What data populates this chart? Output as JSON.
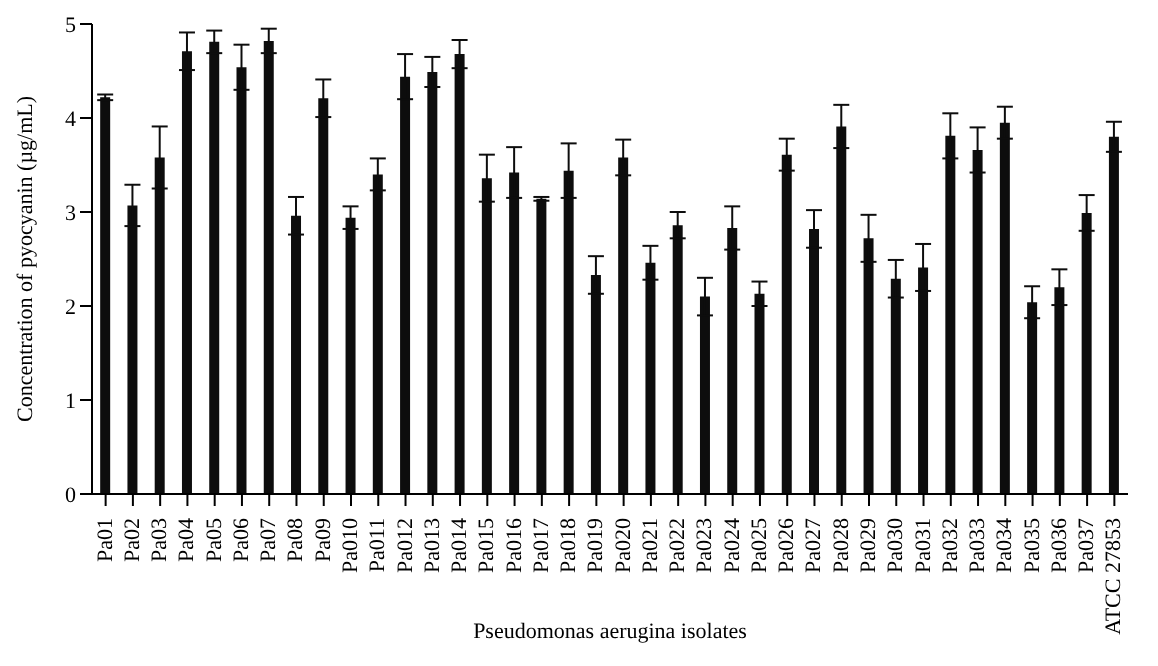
{
  "chart_data": {
    "type": "bar",
    "xlabel": "Pseudomonas aerugina isolates",
    "ylabel": "Concentration of pyocyanin (µg/mL)",
    "categories": [
      "Pa01",
      "Pa02",
      "Pa03",
      "Pa04",
      "Pa05",
      "Pa06",
      "Pa07",
      "Pa08",
      "Pa09",
      "Pa010",
      "Pa011",
      "Pa012",
      "Pa013",
      "Pa014",
      "Pa015",
      "Pa016",
      "Pa017",
      "Pa018",
      "Pa019",
      "Pa020",
      "Pa021",
      "Pa022",
      "Pa023",
      "Pa024",
      "Pa025",
      "Pa026",
      "Pa027",
      "Pa028",
      "Pa029",
      "Pa030",
      "Pa031",
      "Pa032",
      "Pa033",
      "Pa034",
      "Pa035",
      "Pa036",
      "Pa037",
      "ATCC 27853"
    ],
    "values": [
      4.22,
      3.07,
      3.58,
      4.71,
      4.81,
      4.54,
      4.82,
      2.96,
      4.21,
      2.94,
      3.4,
      4.44,
      4.49,
      4.68,
      3.36,
      3.42,
      3.14,
      3.44,
      2.33,
      3.58,
      2.46,
      2.86,
      2.1,
      2.83,
      2.13,
      3.61,
      2.82,
      3.91,
      2.72,
      2.29,
      2.41,
      3.81,
      3.66,
      3.95,
      2.04,
      2.2,
      2.99,
      3.8
    ],
    "errors": [
      0.03,
      0.22,
      0.33,
      0.2,
      0.12,
      0.24,
      0.13,
      0.2,
      0.2,
      0.12,
      0.17,
      0.24,
      0.16,
      0.15,
      0.25,
      0.27,
      0.02,
      0.29,
      0.2,
      0.19,
      0.18,
      0.14,
      0.2,
      0.23,
      0.13,
      0.17,
      0.2,
      0.23,
      0.25,
      0.2,
      0.25,
      0.24,
      0.24,
      0.17,
      0.17,
      0.19,
      0.19,
      0.16
    ],
    "color": "#0d0d0d",
    "ylim": [
      0,
      5
    ],
    "yticks": [
      0,
      1,
      2,
      3,
      4,
      5
    ],
    "grid": false
  }
}
